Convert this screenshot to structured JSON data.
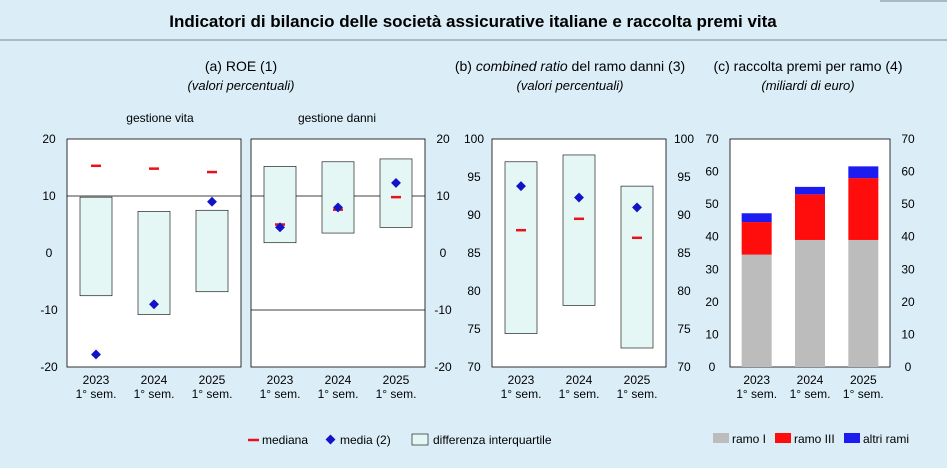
{
  "title": "Indicatori di bilancio delle società assicurative italiane e raccolta premi vita",
  "colors": {
    "background": "#dbeef8",
    "panel": "#ffffff",
    "iqr_fill": "#e4f7f4",
    "median": "#e8111c",
    "mean": "#1212c8",
    "ramo_I": "#bcbcbc",
    "ramo_III": "#ff0d0d",
    "altri_rami": "#1c1cf0"
  },
  "panel_titles": {
    "a": {
      "title": "(a) ROE (1)",
      "subtitle": "(valori percentuali)",
      "sub_life": "gestione vita",
      "sub_nonlife": "gestione danni"
    },
    "b": {
      "title_em": "combined ratio",
      "title_pre": "(b) ",
      "title_post": " del ramo danni (3)",
      "subtitle": "(valori percentuali)"
    },
    "c": {
      "title": "(c) raccolta premi per ramo (4)",
      "subtitle": "(miliardi di euro)"
    }
  },
  "legend_left": {
    "median": "mediana",
    "mean": "media (2)",
    "iqr": "differenza interquartile"
  },
  "legend_right": {
    "ramo_I": "ramo I",
    "ramo_III": "ramo III",
    "altri_rami": "altri rami"
  },
  "chart_data": [
    {
      "id": "roe_vita",
      "type": "box",
      "title": "gestione vita",
      "categories": [
        "2023\n1° sem.",
        "2024\n1° sem.",
        "2025\n1° sem."
      ],
      "ylim": [
        -20,
        20
      ],
      "yticks": [
        -20,
        -10,
        0,
        10,
        20
      ],
      "q1": [
        -7.5,
        -10.8,
        -6.8
      ],
      "q3": [
        9.8,
        7.3,
        7.5
      ],
      "median": [
        15.3,
        14.8,
        14.2
      ],
      "mean": [
        -17.8,
        -9,
        9
      ]
    },
    {
      "id": "roe_danni",
      "type": "box",
      "title": "gestione danni",
      "categories": [
        "2023\n1° sem.",
        "2024\n1° sem.",
        "2025\n1° sem."
      ],
      "ylim": [
        -20,
        20
      ],
      "yticks": [
        -20,
        -10,
        0,
        10,
        20
      ],
      "q1": [
        1.8,
        3.5,
        4.5
      ],
      "q3": [
        15.2,
        16,
        16.5
      ],
      "median": [
        5,
        7.6,
        9.8
      ],
      "mean": [
        4.5,
        8,
        12.3
      ]
    },
    {
      "id": "combined_ratio",
      "type": "box",
      "title": "combined ratio del ramo danni",
      "categories": [
        "2023\n1° sem.",
        "2024\n1° sem.",
        "2025\n1° sem."
      ],
      "ylim": [
        70,
        100
      ],
      "yticks": [
        70,
        75,
        80,
        85,
        90,
        95,
        100
      ],
      "q1": [
        74.4,
        78.1,
        72.5
      ],
      "q3": [
        97,
        97.9,
        93.8
      ],
      "median": [
        88,
        89.5,
        87
      ],
      "mean": [
        93.8,
        92.3,
        91
      ]
    },
    {
      "id": "raccolta_premi",
      "type": "stacked_bar",
      "title": "raccolta premi per ramo",
      "categories": [
        "2023\n1° sem.",
        "2024\n1° sem.",
        "2025\n1° sem."
      ],
      "ylim": [
        0,
        70
      ],
      "yticks": [
        0,
        10,
        20,
        30,
        40,
        50,
        60,
        70
      ],
      "series": [
        {
          "name": "ramo I",
          "values": [
            34.5,
            39,
            39
          ]
        },
        {
          "name": "ramo III",
          "values": [
            10,
            14,
            19
          ]
        },
        {
          "name": "altri rami",
          "values": [
            2.7,
            2.3,
            3.6
          ]
        }
      ]
    }
  ]
}
